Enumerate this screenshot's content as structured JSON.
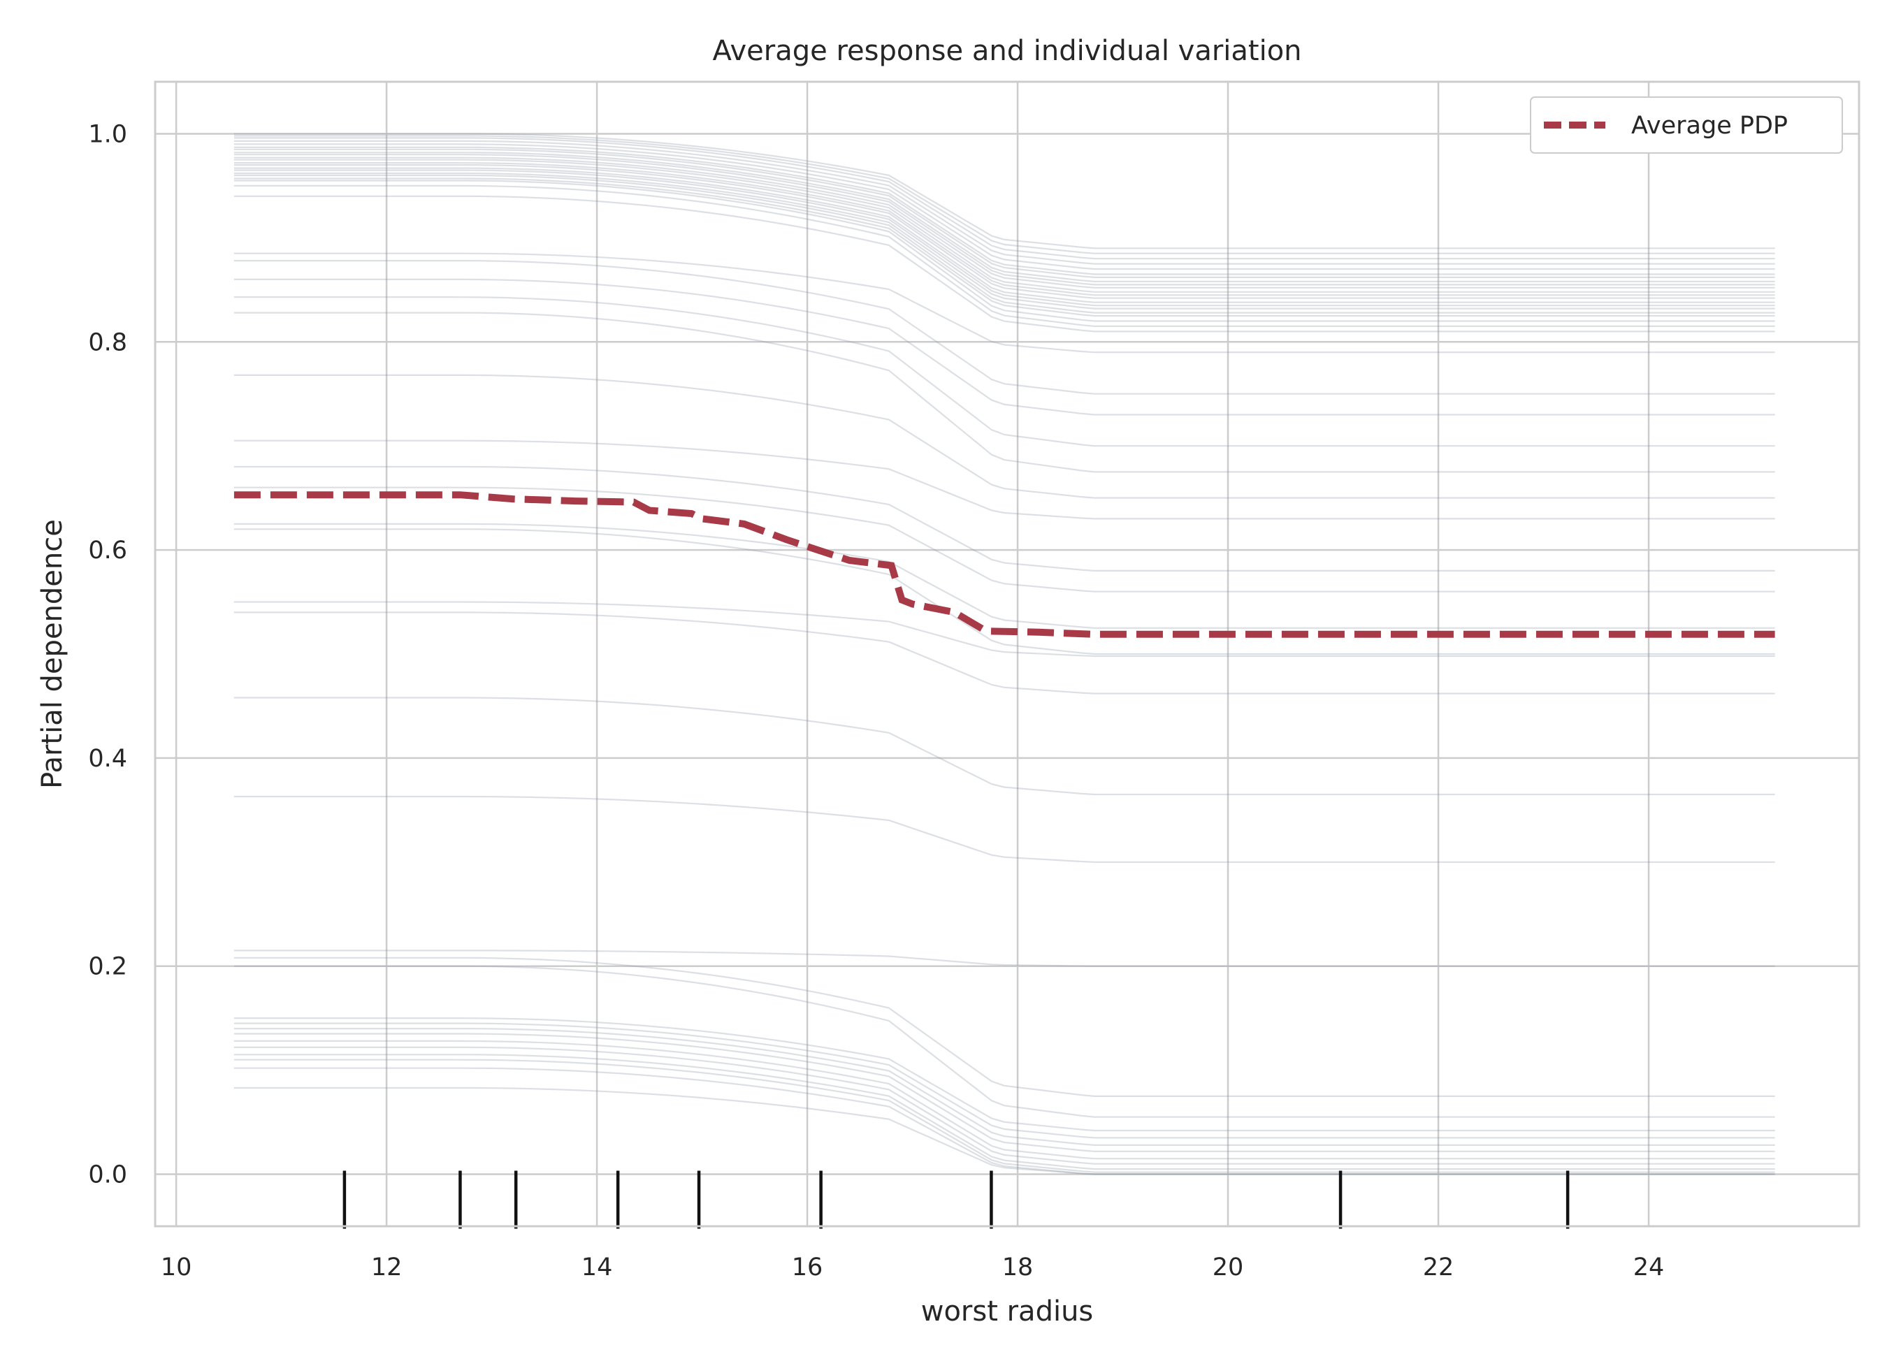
{
  "chart_data": {
    "type": "line",
    "title": "Average response and individual variation",
    "xlabel": "worst radius",
    "ylabel": "Partial dependence",
    "xlim": [
      9.8,
      26.0
    ],
    "ylim": [
      -0.05,
      1.05
    ],
    "x_ticks": [
      10,
      12,
      14,
      16,
      18,
      20,
      22,
      24
    ],
    "y_ticks": [
      0.0,
      0.2,
      0.4,
      0.6,
      0.8,
      1.0
    ],
    "x_tick_labels": [
      "10",
      "12",
      "14",
      "16",
      "18",
      "20",
      "22",
      "24"
    ],
    "y_tick_labels": [
      "0.0",
      "0.2",
      "0.4",
      "0.6",
      "0.8",
      "1.0"
    ],
    "grid": true,
    "legend": {
      "position": "top-right",
      "entries": [
        "Average PDP"
      ]
    },
    "colors": {
      "average": "#a83a48",
      "individual": "#8a96a3",
      "grid": "#cccccc",
      "rug": "#111111"
    },
    "x_range": [
      10.55,
      25.2
    ],
    "individual_curves_level_at_min_x": [
      1.0,
      0.998,
      0.996,
      0.993,
      0.99,
      0.987,
      0.985,
      0.982,
      0.98,
      0.977,
      0.975,
      0.972,
      0.97,
      0.967,
      0.965,
      0.962,
      0.96,
      0.957,
      0.955,
      0.95,
      0.94,
      0.885,
      0.878,
      0.86,
      0.843,
      0.828,
      0.768,
      0.705,
      0.68,
      0.66,
      0.625,
      0.62,
      0.55,
      0.54,
      0.458,
      0.363,
      0.215,
      0.208,
      0.2,
      0.15,
      0.145,
      0.14,
      0.135,
      0.128,
      0.122,
      0.115,
      0.11,
      0.102,
      0.083
    ],
    "individual_curves_level_at_max_x": [
      0.89,
      0.885,
      0.88,
      0.875,
      0.87,
      0.865,
      0.862,
      0.858,
      0.855,
      0.852,
      0.848,
      0.845,
      0.842,
      0.838,
      0.835,
      0.832,
      0.828,
      0.825,
      0.82,
      0.815,
      0.81,
      0.79,
      0.75,
      0.73,
      0.7,
      0.675,
      0.65,
      0.63,
      0.58,
      0.56,
      0.525,
      0.5,
      0.498,
      0.462,
      0.365,
      0.3,
      0.2,
      0.075,
      0.055,
      0.042,
      0.035,
      0.028,
      0.022,
      0.015,
      0.01,
      0.005,
      0.002,
      0.0,
      0.0
    ],
    "average_pdp": {
      "name": "Average PDP",
      "x": [
        10.55,
        12.7,
        13.2,
        13.8,
        14.35,
        14.5,
        14.9,
        15.0,
        15.4,
        15.8,
        16.1,
        16.4,
        16.8,
        16.9,
        17.0,
        17.4,
        17.7,
        18.2,
        18.7,
        20.0,
        25.2
      ],
      "y": [
        0.653,
        0.653,
        0.649,
        0.647,
        0.646,
        0.638,
        0.635,
        0.63,
        0.625,
        0.61,
        0.6,
        0.59,
        0.585,
        0.552,
        0.548,
        0.54,
        0.522,
        0.521,
        0.519,
        0.519,
        0.519
      ]
    },
    "rug_x": [
      11.6,
      12.7,
      13.23,
      14.2,
      14.97,
      16.13,
      17.75,
      21.07,
      23.23
    ]
  }
}
